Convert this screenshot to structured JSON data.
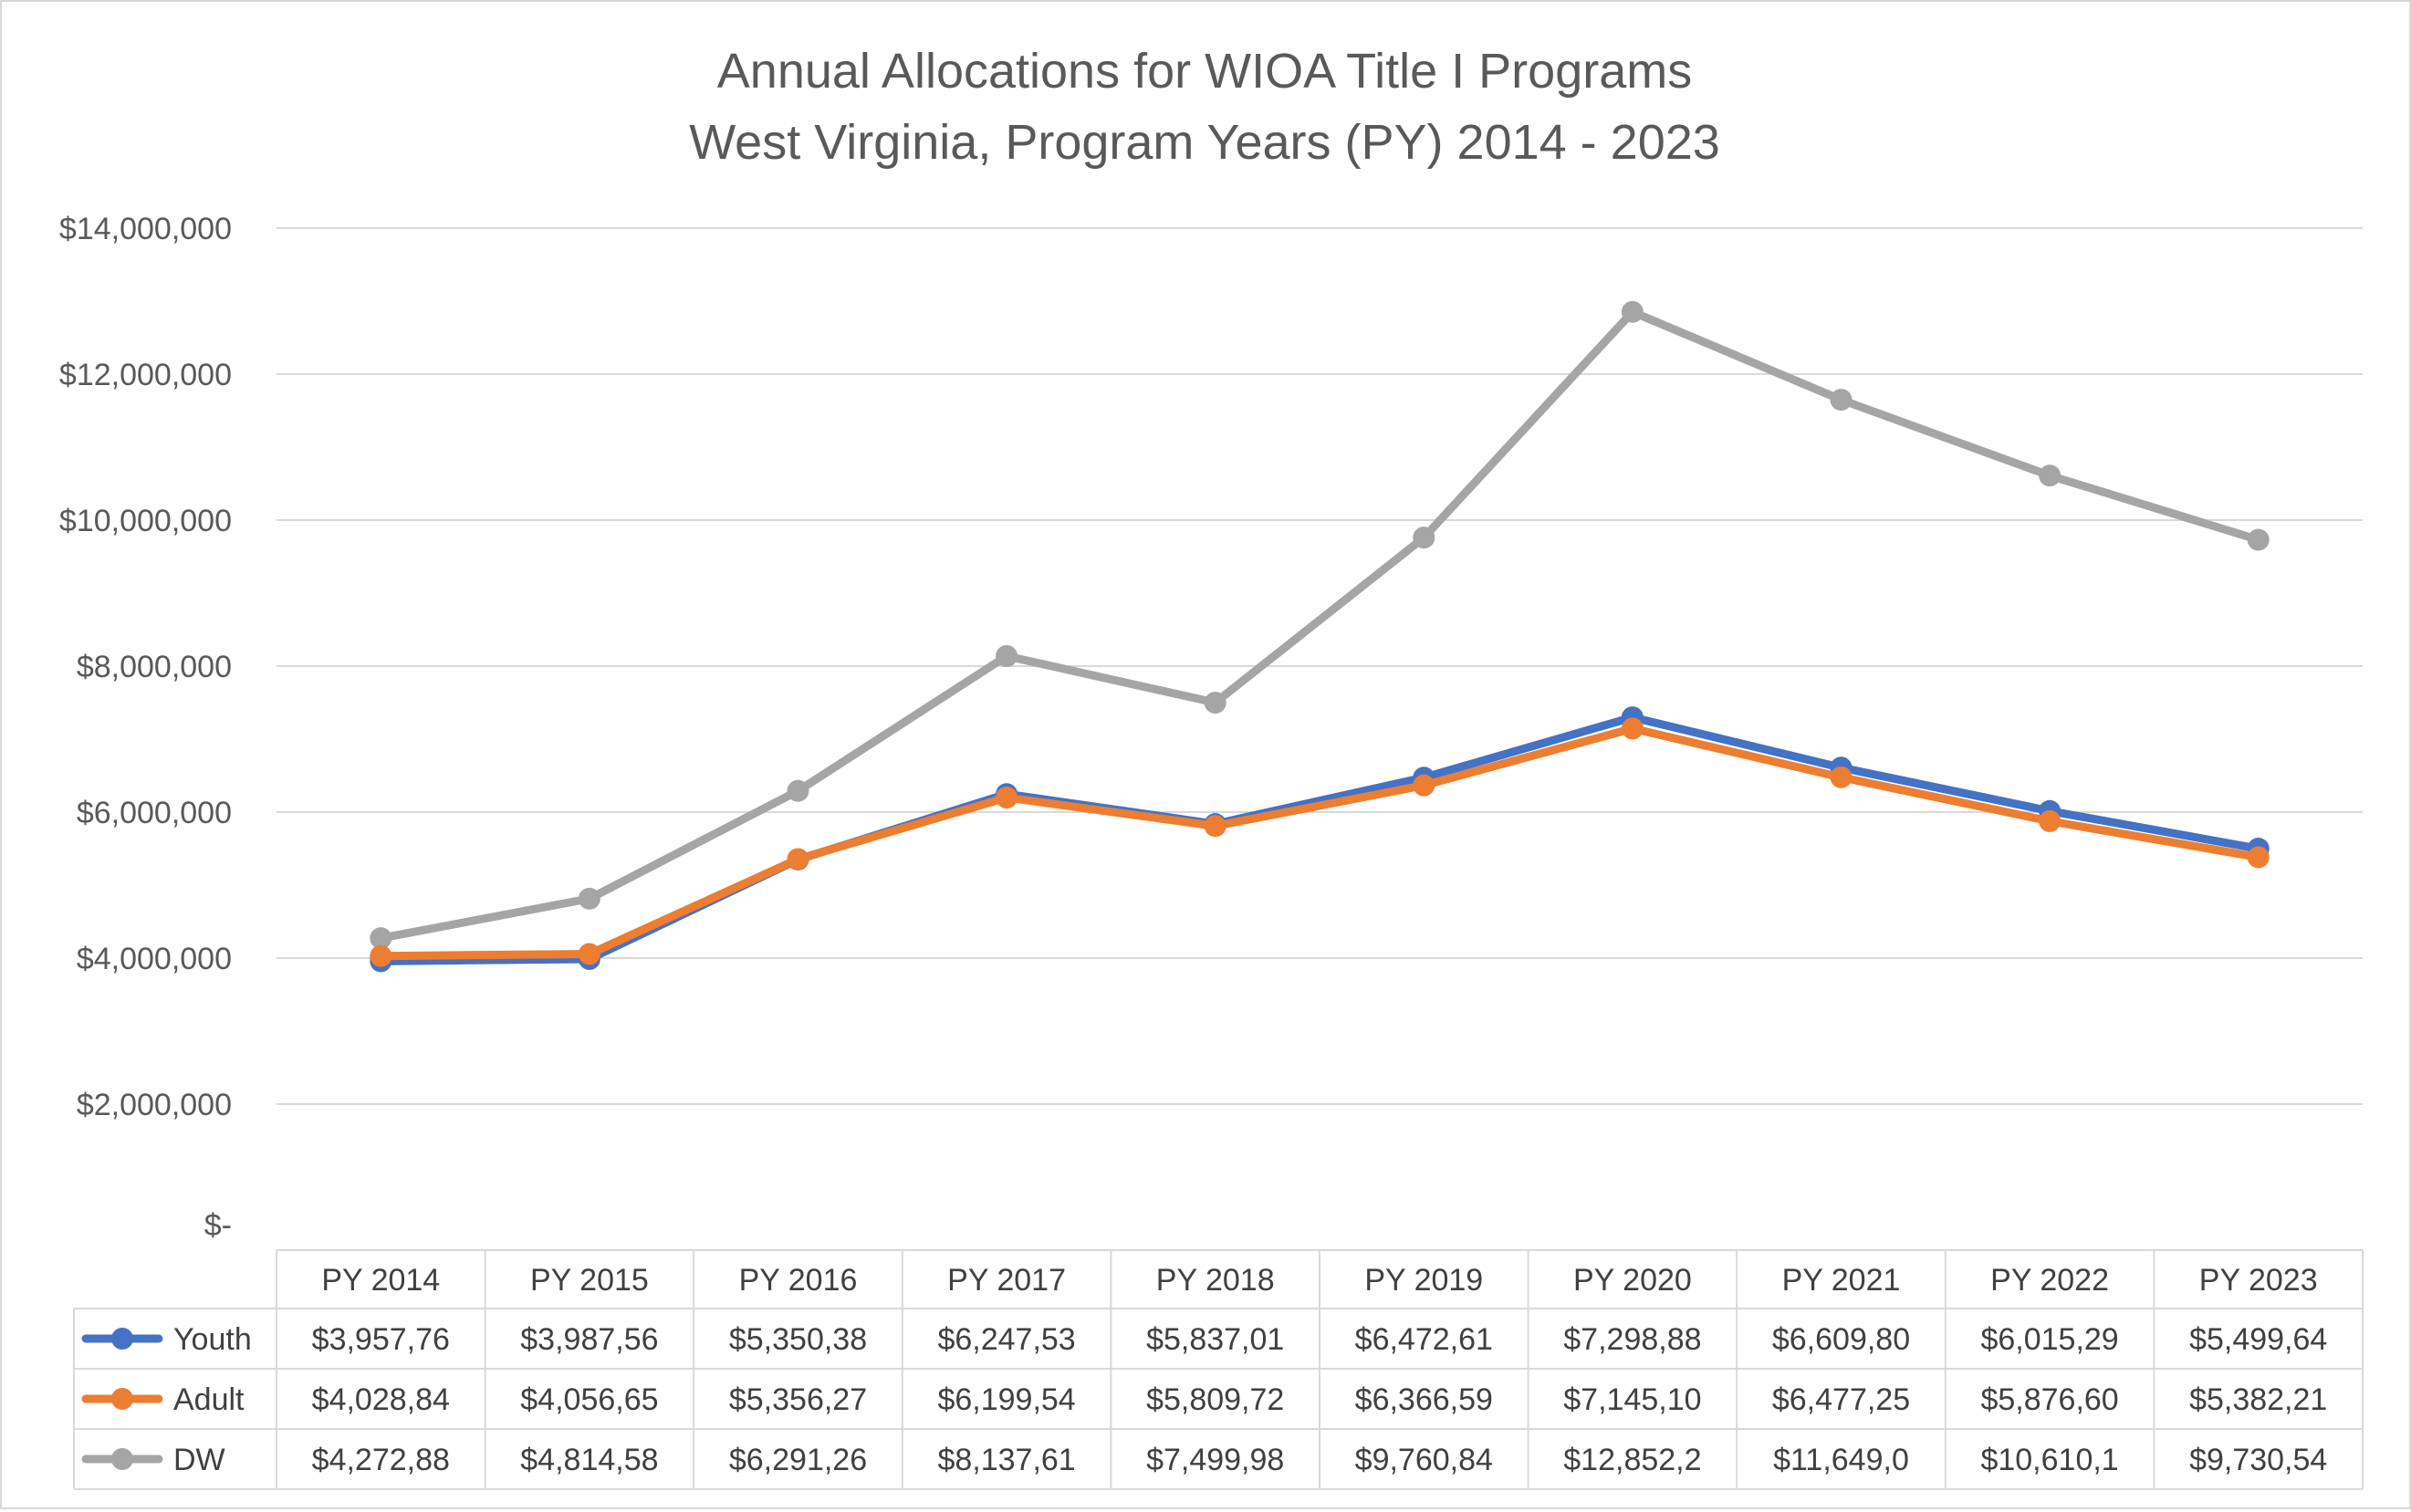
{
  "chart_data": {
    "type": "line",
    "title": "Annual Allocations for WIOA Title I Programs",
    "subtitle": "West Virginia, Program Years (PY) 2014 - 2023",
    "categories": [
      "PY 2014",
      "PY 2015",
      "PY 2016",
      "PY 2017",
      "PY 2018",
      "PY 2019",
      "PY 2020",
      "PY 2021",
      "PY 2022",
      "PY 2023"
    ],
    "ylim": [
      0,
      14000000
    ],
    "yticks": [
      {
        "value": 0,
        "label": "$-"
      },
      {
        "value": 2000000,
        "label": "$2,000,000"
      },
      {
        "value": 4000000,
        "label": "$4,000,000"
      },
      {
        "value": 6000000,
        "label": "$6,000,000"
      },
      {
        "value": 8000000,
        "label": "$8,000,000"
      },
      {
        "value": 10000000,
        "label": "$10,000,000"
      },
      {
        "value": 12000000,
        "label": "$12,000,000"
      },
      {
        "value": 14000000,
        "label": "$14,000,000"
      }
    ],
    "grid": true,
    "legend": "data-table",
    "series": [
      {
        "name": "Youth",
        "color": "#4472C4",
        "values": [
          3957760,
          3987560,
          5350380,
          6247530,
          5837010,
          6472610,
          7298880,
          6609800,
          6015290,
          5499640
        ],
        "table_labels": [
          "$3,957,76",
          "$3,987,56",
          "$5,350,38",
          "$6,247,53",
          "$5,837,01",
          "$6,472,61",
          "$7,298,88",
          "$6,609,80",
          "$6,015,29",
          "$5,499,64"
        ]
      },
      {
        "name": "Adult",
        "color": "#ED7D31",
        "values": [
          4028840,
          4056650,
          5356270,
          6199540,
          5809720,
          6366590,
          7145100,
          6477250,
          5876600,
          5382210
        ],
        "table_labels": [
          "$4,028,84",
          "$4,056,65",
          "$5,356,27",
          "$6,199,54",
          "$5,809,72",
          "$6,366,59",
          "$7,145,10",
          "$6,477,25",
          "$5,876,60",
          "$5,382,21"
        ]
      },
      {
        "name": "DW",
        "color": "#A5A5A5",
        "values": [
          4272880,
          4814580,
          6291260,
          8137610,
          7499980,
          9760840,
          12852200,
          11649000,
          10610100,
          9730540
        ],
        "table_labels": [
          "$4,272,88",
          "$4,814,58",
          "$6,291,26",
          "$8,137,61",
          "$7,499,98",
          "$9,760,84",
          "$12,852,2",
          "$11,649,0",
          "$10,610,1",
          "$9,730,54"
        ]
      }
    ]
  }
}
